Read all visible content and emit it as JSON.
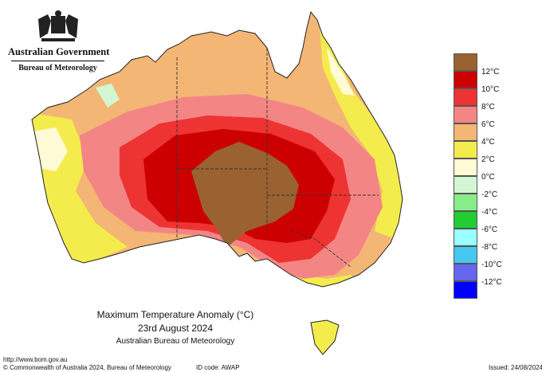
{
  "header": {
    "government": "Australian Government",
    "bureau": "Bureau of Meteorology"
  },
  "map": {
    "title": "Maximum Temperature Anomaly (°C)",
    "date": "23rd August 2024",
    "source": "Australian Bureau of Meteorology",
    "unit": "°C"
  },
  "legend": [
    {
      "label": "",
      "color": "#9a6231"
    },
    {
      "label": "12°C",
      "color": "#cc0000"
    },
    {
      "label": "10°C",
      "color": "#ee3333"
    },
    {
      "label": "8°C",
      "color": "#f48585"
    },
    {
      "label": "6°C",
      "color": "#f4b674"
    },
    {
      "label": "4°C",
      "color": "#f4ec4c"
    },
    {
      "label": "2°C",
      "color": "#fffbd6"
    },
    {
      "label": "0°C",
      "color": "#d2f7d2"
    },
    {
      "label": "-2°C",
      "color": "#88ec88"
    },
    {
      "label": "-4°C",
      "color": "#22cc33"
    },
    {
      "label": "-6°C",
      "color": "#99ffff"
    },
    {
      "label": "-8°C",
      "color": "#44c8f0"
    },
    {
      "label": "-10°C",
      "color": "#6666ee"
    },
    {
      "label": "-12°C",
      "color": "#0000ff"
    }
  ],
  "footer": {
    "url": "http://www.bom.gov.au",
    "copyright": "© Commonwealth of Australia 2024, Bureau of Meteorology",
    "id_code": "ID code: AWAP",
    "issued": "Issued: 24/08/2024"
  }
}
